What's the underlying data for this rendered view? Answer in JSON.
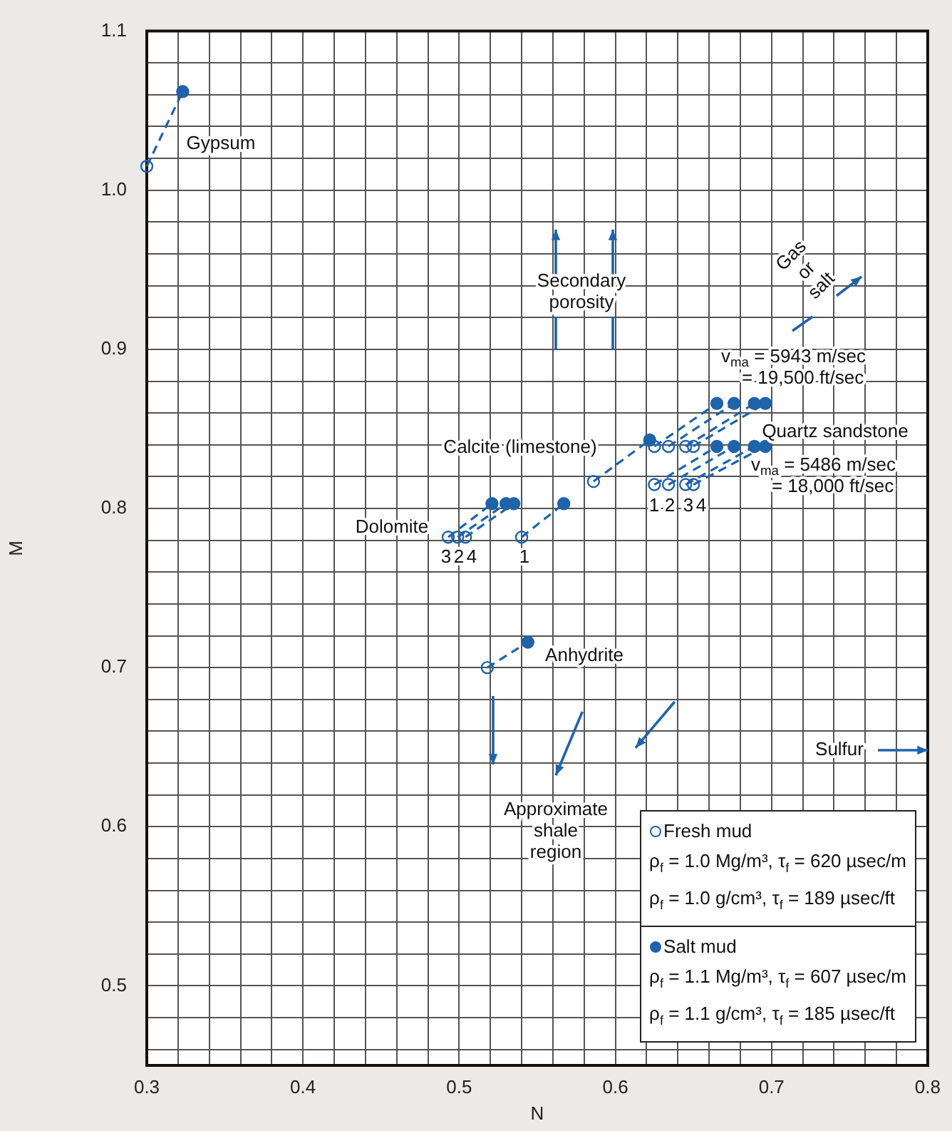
{
  "chart_data": {
    "type": "scatter",
    "xlabel": "N",
    "ylabel": "M",
    "xlim": [
      0.3,
      0.8
    ],
    "ylim": [
      0.45,
      1.1
    ],
    "xticks": [
      0.3,
      {
        "value": 0.32,
        "label": null
      },
      {
        "value": 0.34,
        "label": null
      },
      {
        "value": 0.36,
        "label": null
      },
      {
        "value": 0.38,
        "label": null
      },
      0.4,
      {
        "value": 0.42,
        "label": null
      },
      {
        "value": 0.44,
        "label": null
      },
      {
        "value": 0.46,
        "label": null
      },
      {
        "value": 0.48,
        "label": null
      },
      0.5,
      {
        "value": 0.52,
        "label": null
      },
      {
        "value": 0.54,
        "label": null
      },
      {
        "value": 0.56,
        "label": null
      },
      {
        "value": 0.58,
        "label": null
      },
      0.6,
      {
        "value": 0.62,
        "label": null
      },
      {
        "value": 0.64,
        "label": null
      },
      {
        "value": 0.66,
        "label": null
      },
      {
        "value": 0.68,
        "label": null
      },
      0.7,
      {
        "value": 0.72,
        "label": null
      },
      {
        "value": 0.74,
        "label": null
      },
      {
        "value": 0.76,
        "label": null
      },
      {
        "value": 0.78,
        "label": null
      },
      0.8
    ],
    "yticks": [
      {
        "value": 0.46,
        "label": null
      },
      {
        "value": 0.48,
        "label": null
      },
      0.5,
      {
        "value": 0.52,
        "label": null
      },
      {
        "value": 0.54,
        "label": null
      },
      {
        "value": 0.56,
        "label": null
      },
      {
        "value": 0.58,
        "label": null
      },
      0.6,
      {
        "value": 0.62,
        "label": null
      },
      {
        "value": 0.64,
        "label": null
      },
      {
        "value": 0.66,
        "label": null
      },
      {
        "value": 0.68,
        "label": null
      },
      0.7,
      {
        "value": 0.72,
        "label": null
      },
      {
        "value": 0.74,
        "label": null
      },
      {
        "value": 0.76,
        "label": null
      },
      {
        "value": 0.78,
        "label": null
      },
      0.8,
      {
        "value": 0.82,
        "label": null
      },
      {
        "value": 0.84,
        "label": null
      },
      {
        "value": 0.86,
        "label": null
      },
      {
        "value": 0.88,
        "label": null
      },
      0.9,
      {
        "value": 0.92,
        "label": null
      },
      {
        "value": 0.94,
        "label": null
      },
      {
        "value": 0.96,
        "label": null
      },
      {
        "value": 0.98,
        "label": null
      },
      {
        "value": 1.0,
        "label": "1.0"
      },
      {
        "value": 1.02,
        "label": null
      },
      {
        "value": 1.04,
        "label": null
      },
      {
        "value": 1.06,
        "label": null
      },
      {
        "value": 1.08,
        "label": null
      },
      1.1
    ],
    "grid": true,
    "legend": "bottom right",
    "line_style": "dashed",
    "marker": "circle",
    "series": [
      {
        "type": "line",
        "color": "#1f63aa",
        "marker": "none",
        "x": [
          0.3,
          0.323
        ],
        "values": [
          1.015,
          1.062
        ]
      },
      {
        "type": "line",
        "color": "#1f63aa",
        "marker": "none",
        "x": [
          0.493,
          0.521
        ],
        "values": [
          0.782,
          0.803
        ]
      },
      {
        "type": "line",
        "color": "#1f63aa",
        "marker": "none",
        "x": [
          0.499,
          0.53
        ],
        "values": [
          0.782,
          0.803
        ]
      },
      {
        "type": "line",
        "color": "#1f63aa",
        "marker": "none",
        "x": [
          0.504,
          0.535
        ],
        "values": [
          0.782,
          0.803
        ]
      },
      {
        "type": "line",
        "color": "#1f63aa",
        "marker": "none",
        "x": [
          0.54,
          0.567
        ],
        "values": [
          0.782,
          0.803
        ]
      },
      {
        "type": "line",
        "color": "#1f63aa",
        "marker": "none",
        "x": [
          0.586,
          0.622
        ],
        "values": [
          0.817,
          0.843
        ]
      },
      {
        "type": "line",
        "color": "#1f63aa",
        "marker": "none",
        "x": [
          0.625,
          0.665
        ],
        "values": [
          0.839,
          0.866
        ]
      },
      {
        "type": "line",
        "color": "#1f63aa",
        "marker": "none",
        "x": [
          0.634,
          0.676
        ],
        "values": [
          0.839,
          0.866
        ]
      },
      {
        "type": "line",
        "color": "#1f63aa",
        "marker": "none",
        "x": [
          0.645,
          0.689
        ],
        "values": [
          0.839,
          0.866
        ]
      },
      {
        "type": "line",
        "color": "#1f63aa",
        "marker": "none",
        "x": [
          0.65,
          0.696
        ],
        "values": [
          0.839,
          0.866
        ]
      },
      {
        "type": "line",
        "color": "#1f63aa",
        "marker": "none",
        "x": [
          0.625,
          0.665
        ],
        "values": [
          0.815,
          0.839
        ]
      },
      {
        "type": "line",
        "color": "#1f63aa",
        "marker": "none",
        "x": [
          0.634,
          0.676
        ],
        "values": [
          0.815,
          0.839
        ]
      },
      {
        "type": "line",
        "color": "#1f63aa",
        "marker": "none",
        "x": [
          0.645,
          0.689
        ],
        "values": [
          0.815,
          0.839
        ]
      },
      {
        "type": "line",
        "color": "#1f63aa",
        "marker": "none",
        "x": [
          0.65,
          0.696
        ],
        "values": [
          0.815,
          0.839
        ]
      },
      {
        "type": "line",
        "color": "#1f63aa",
        "marker": "none",
        "x": [
          0.518,
          0.544
        ],
        "values": [
          0.7,
          0.716
        ]
      },
      {
        "name": "Fresh mud",
        "color": "#1f63aa",
        "x": [
          0.3,
          0.493,
          0.499,
          0.504,
          0.54,
          0.586,
          0.625,
          0.634,
          0.645,
          0.65,
          0.625,
          0.634,
          0.645,
          0.65,
          0.518
        ],
        "values": [
          1.015,
          0.782,
          0.782,
          0.782,
          0.782,
          0.817,
          0.839,
          0.839,
          0.839,
          0.839,
          0.815,
          0.815,
          0.815,
          0.815,
          0.7
        ]
      },
      {
        "name": "Salt mud",
        "color": "#1f63aa",
        "x": [
          0.323,
          0.521,
          0.53,
          0.535,
          0.567,
          0.622,
          0.665,
          0.676,
          0.689,
          0.696,
          0.665,
          0.676,
          0.689,
          0.696,
          0.544
        ],
        "values": [
          1.062,
          0.803,
          0.803,
          0.803,
          0.803,
          0.843,
          0.866,
          0.866,
          0.866,
          0.866,
          0.839,
          0.839,
          0.839,
          0.839,
          0.716
        ]
      }
    ],
    "annotations": [
      "ρ$_{f}$ = 1.0 Mg/m³, τ$_{f}$ = 620 µsec/m",
      "ρ$_{f}$ = 1.0 g/cm³, τ$_{f}$ = 189 µsec/ft",
      "ρ$_{f}$ = 1.1 Mg/m³, τ$_{f}$ = 607 µsec/m",
      "ρ$_{f}$ = 1.1 g/cm³, τ$_{f}$ = 185 µsec/ft",
      "Gypsum",
      "Secondary\nporosity",
      "Gas\nor\nsalt",
      "v$_{ma}$ = 5943 m/sec\n    = 19,500 ft/sec",
      "Quartz sandstone",
      "v$_{ma}$ = 5486 m/sec\n    = 18,000 ft/sec",
      "Calcite (limestone)",
      "Dolomite",
      "Anhydrite",
      "Approximate\nshale\nregion",
      "Sulfur",
      "3",
      "2",
      "4",
      "1",
      "1",
      "2",
      "3",
      "4"
    ]
  }
}
